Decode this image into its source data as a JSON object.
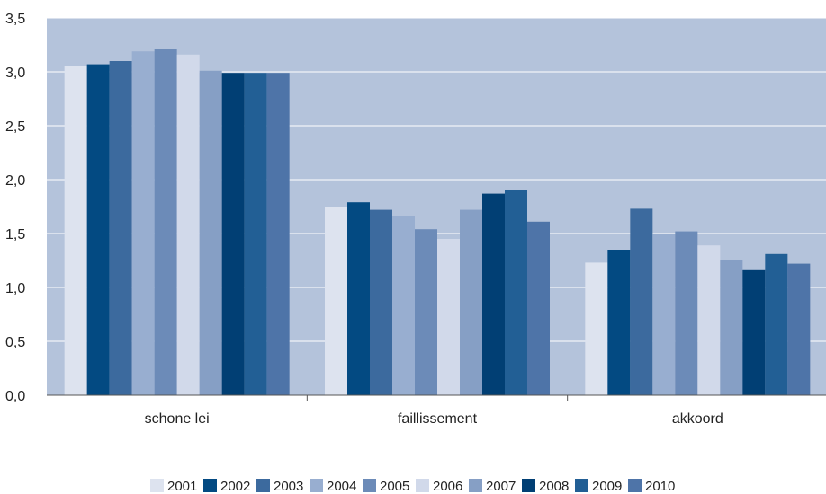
{
  "chart_data": {
    "type": "bar",
    "title": "",
    "xlabel": "",
    "ylabel": "",
    "ylim": [
      0,
      3.5
    ],
    "yticks": [
      "0,0",
      "0,5",
      "1,0",
      "1,5",
      "2,0",
      "2,5",
      "3,0",
      "3,5"
    ],
    "grid": true,
    "legend_position": "bottom",
    "plot_background": "#b4c3db",
    "categories": [
      "schone lei",
      "faillissement",
      "akkoord"
    ],
    "series": [
      {
        "name": "2001",
        "color": "#dde3ef",
        "values": [
          3.05,
          1.75,
          1.23
        ]
      },
      {
        "name": "2002",
        "color": "#034a82",
        "values": [
          3.07,
          1.79,
          1.35
        ]
      },
      {
        "name": "2003",
        "color": "#3c6a9e",
        "values": [
          3.1,
          1.72,
          1.73
        ]
      },
      {
        "name": "2004",
        "color": "#98aed0",
        "values": [
          3.19,
          1.66,
          1.5
        ]
      },
      {
        "name": "2005",
        "color": "#6c8bb8",
        "values": [
          3.21,
          1.54,
          1.52
        ]
      },
      {
        "name": "2006",
        "color": "#d1d9ea",
        "values": [
          3.16,
          1.45,
          1.39
        ]
      },
      {
        "name": "2007",
        "color": "#869fc5",
        "values": [
          3.01,
          1.72,
          1.25
        ]
      },
      {
        "name": "2008",
        "color": "#013f74",
        "values": [
          2.99,
          1.87,
          1.16
        ]
      },
      {
        "name": "2009",
        "color": "#225f95",
        "values": [
          2.99,
          1.9,
          1.31
        ]
      },
      {
        "name": "2010",
        "color": "#4e74a8",
        "values": [
          2.99,
          1.61,
          1.22
        ]
      }
    ]
  }
}
